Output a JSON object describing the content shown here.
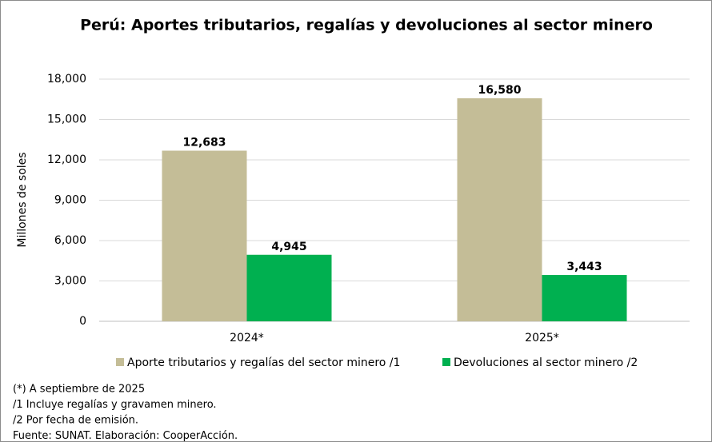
{
  "chart_data": {
    "type": "bar",
    "title": "Perú: Aportes tributarios, regalías y devoluciones al sector minero",
    "y_label": "Millones de soles",
    "categories": [
      "2024*",
      "2025*"
    ],
    "series": [
      {
        "name": "Aporte tributarios y regalías del sector minero /1",
        "color": "#c4bd97",
        "values": [
          12683,
          16580
        ],
        "value_labels": [
          "12,683",
          "16,580"
        ]
      },
      {
        "name": "Devoluciones al sector minero /2",
        "color": "#00b050",
        "values": [
          4945,
          3443
        ],
        "value_labels": [
          "4,945",
          "3,443"
        ]
      }
    ],
    "ylim": [
      0,
      18000
    ],
    "yticks": [
      0,
      {
        "value": 3000,
        "label": "3,000"
      },
      {
        "value": 6000,
        "label": "6,000"
      },
      {
        "value": 9000,
        "label": "9,000"
      },
      {
        "value": 12000,
        "label": "12,000"
      },
      {
        "value": 15000,
        "label": "15,000"
      },
      {
        "value": 18000,
        "label": "18,000"
      }
    ],
    "grid": true,
    "legend": "bottom",
    "notes": [
      "(*) A septiembre de 2025",
      "/1 Incluye regalías y gravamen minero.",
      "/2 Por fecha de emisión.",
      "Fuente: SUNAT. Elaboración: CooperAcción."
    ]
  }
}
